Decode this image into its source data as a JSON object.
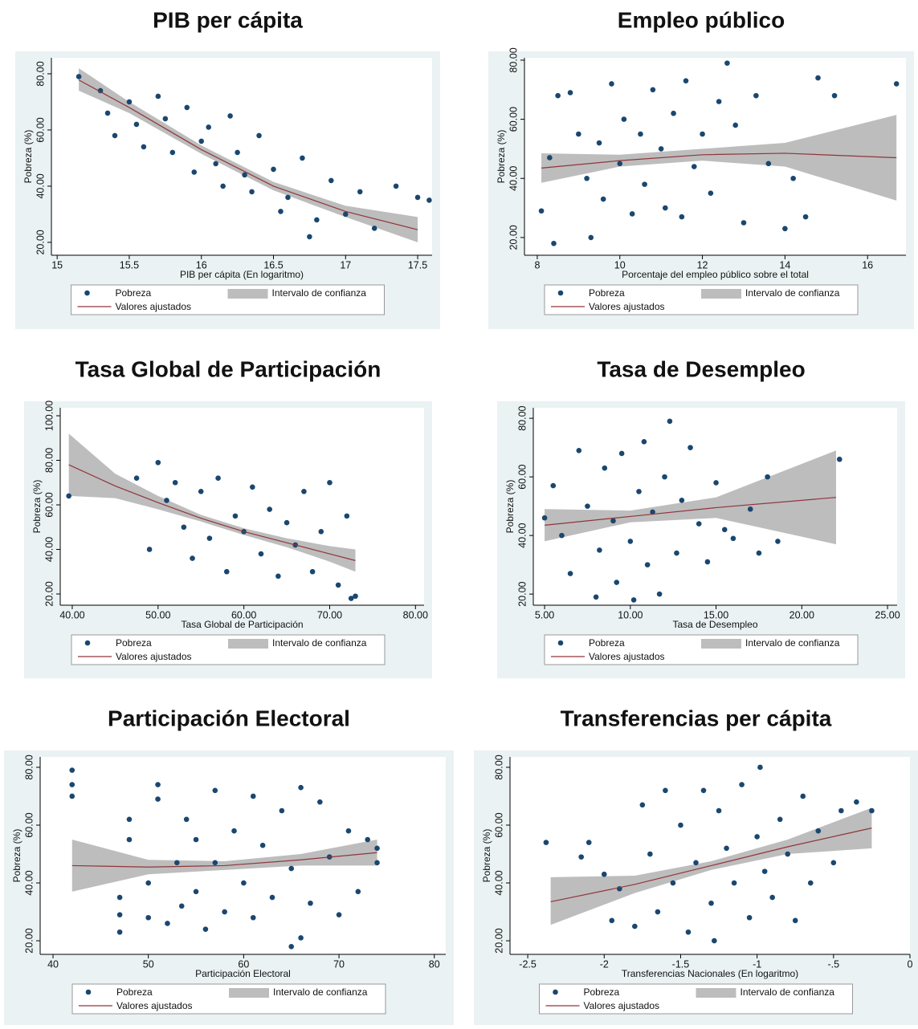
{
  "chart_data": [
    {
      "type": "scatter",
      "title": "PIB per cápita",
      "x_label": "PIB per cápita (En logaritmo)",
      "y_label": "Pobreza (%)",
      "xlim": [
        14.96,
        17.6
      ],
      "ylim": [
        15.4,
        85.7
      ],
      "xticks": [
        15,
        15.5,
        16,
        16.5,
        17,
        17.5
      ],
      "yticks": [
        {
          "value": 20,
          "label": "20.00"
        },
        {
          "value": 40,
          "label": "40.00"
        },
        {
          "value": 60,
          "label": "60.00"
        },
        {
          "value": 80,
          "label": "80.00"
        }
      ],
      "series": [
        {
          "name": "Pobreza",
          "color": "#1a476f",
          "x": [
            15.15,
            15.3,
            15.35,
            15.4,
            15.5,
            15.55,
            15.6,
            15.7,
            15.75,
            15.8,
            15.9,
            15.95,
            16.0,
            16.05,
            16.1,
            16.15,
            16.2,
            16.25,
            16.3,
            16.35,
            16.4,
            16.5,
            16.55,
            16.6,
            16.7,
            16.75,
            16.8,
            16.9,
            17.0,
            17.1,
            17.2,
            17.35,
            17.5,
            17.58
          ],
          "values": [
            79,
            74,
            66,
            58,
            70,
            62,
            54,
            72,
            64,
            52,
            68,
            45,
            56,
            61,
            48,
            40,
            65,
            52,
            44,
            38,
            58,
            46,
            31,
            36,
            50,
            22,
            28,
            42,
            30,
            38,
            25,
            40,
            36,
            35
          ]
        },
        {
          "name": "Intervalo de confianza",
          "color": "#bdbdbd",
          "x": [
            15.15,
            15.5,
            16,
            16.5,
            17,
            17.5
          ],
          "lower": [
            74,
            66,
            51.5,
            38.5,
            29,
            20
          ],
          "upper": [
            82,
            70,
            54.5,
            41.5,
            33,
            29
          ]
        },
        {
          "name": "Valores ajustados",
          "color": "#90353b",
          "x": [
            15.15,
            15.5,
            16,
            16.5,
            17,
            17.5
          ],
          "values": [
            77.8,
            68,
            53,
            40,
            31,
            24.5
          ]
        }
      ]
    },
    {
      "type": "scatter",
      "title": "Empleo público",
      "x_label": "Porcentaje del empleo público sobre el total",
      "y_label": "Pobreza (%)",
      "xlim": [
        7.69,
        16.93
      ],
      "ylim": [
        14.0,
        80.8
      ],
      "xticks": [
        8,
        10,
        12,
        14,
        16
      ],
      "yticks": [
        {
          "value": 20,
          "label": "20.00"
        },
        {
          "value": 40,
          "label": "40.00"
        },
        {
          "value": 60,
          "label": "60.00"
        },
        {
          "value": 80,
          "label": "80.00"
        }
      ],
      "series": [
        {
          "name": "Pobreza",
          "color": "#1a476f",
          "x": [
            8.1,
            8.3,
            8.4,
            8.5,
            8.8,
            9,
            9.2,
            9.3,
            9.5,
            9.6,
            9.8,
            10,
            10.1,
            10.3,
            10.5,
            10.6,
            10.8,
            11,
            11.1,
            11.3,
            11.5,
            11.6,
            11.8,
            12,
            12.2,
            12.4,
            12.6,
            12.8,
            13,
            13.3,
            13.6,
            14,
            14.2,
            14.5,
            14.8,
            15.2,
            16.7
          ],
          "values": [
            29,
            47,
            18,
            68,
            69,
            55,
            40,
            20,
            52,
            33,
            72,
            45,
            60,
            28,
            55,
            38,
            70,
            50,
            30,
            62,
            27,
            73,
            44,
            55,
            35,
            66,
            79,
            58,
            25,
            68,
            45,
            23,
            40,
            27,
            74,
            68,
            72
          ]
        },
        {
          "name": "Intervalo de confianza",
          "color": "#bdbdbd",
          "x": [
            8.1,
            10,
            12,
            14,
            16.7
          ],
          "lower": [
            38.5,
            44,
            46,
            44,
            32.5
          ],
          "upper": [
            48.5,
            48,
            50,
            52,
            61.5
          ]
        },
        {
          "name": "Valores ajustados",
          "color": "#90353b",
          "x": [
            8.1,
            10,
            12,
            14,
            16.7
          ],
          "values": [
            43.5,
            46,
            48,
            48.5,
            47
          ]
        }
      ]
    },
    {
      "type": "scatter",
      "title": "Tasa Global de Participación",
      "x_label": "Tasa Global de Participación",
      "y_label": "Pobreza (%)",
      "xlim": [
        38.6,
        81.0
      ],
      "ylim": [
        14.95,
        103.6
      ],
      "xticks": [
        {
          "value": 40,
          "label": "40.00"
        },
        {
          "value": 50,
          "label": "50.00"
        },
        {
          "value": 60,
          "label": "60.00"
        },
        {
          "value": 70,
          "label": "70.00"
        },
        {
          "value": 80,
          "label": "80.00"
        }
      ],
      "yticks": [
        {
          "value": 20,
          "label": "20.00"
        },
        {
          "value": 40,
          "label": "40.00"
        },
        {
          "value": 60,
          "label": "60.00"
        },
        {
          "value": 80,
          "label": "80.00"
        },
        {
          "value": 100,
          "label": "100.00"
        }
      ],
      "series": [
        {
          "name": "Pobreza",
          "color": "#1a476f",
          "x": [
            39.6,
            47.5,
            49,
            50,
            51,
            52,
            53,
            54,
            55,
            56,
            57,
            58,
            59,
            60,
            61,
            62,
            63,
            64,
            65,
            66,
            67,
            68,
            69,
            70,
            71,
            72,
            72.5,
            73
          ],
          "values": [
            64,
            72,
            40,
            79,
            62,
            70,
            50,
            36,
            66,
            45,
            72,
            30,
            55,
            48,
            68,
            38,
            58,
            28,
            52,
            42,
            66,
            30,
            48,
            70,
            24,
            55,
            18,
            19
          ]
        },
        {
          "name": "Intervalo de confianza",
          "color": "#bdbdbd",
          "x": [
            39.6,
            45,
            50,
            55,
            60,
            65,
            70,
            73
          ],
          "lower": [
            64,
            63,
            58,
            52.5,
            46.5,
            41,
            34.5,
            30
          ],
          "upper": [
            92,
            74,
            64,
            55.5,
            49.5,
            45,
            41.5,
            40
          ]
        },
        {
          "name": "Valores ajustados",
          "color": "#90353b",
          "x": [
            39.6,
            45,
            50,
            55,
            60,
            65,
            70,
            73
          ],
          "values": [
            78,
            68.5,
            61,
            54,
            48,
            43,
            38,
            35
          ]
        }
      ]
    },
    {
      "type": "scatter",
      "title": "Tasa de Desempleo",
      "x_label": "Tasa de Desempleo",
      "y_label": "Pobreza (%)",
      "xlim": [
        4.34,
        25.56
      ],
      "ylim": [
        16.2,
        83.6
      ],
      "xticks": [
        {
          "value": 5,
          "label": "5.00"
        },
        {
          "value": 10,
          "label": "10.00"
        },
        {
          "value": 15,
          "label": "15.00"
        },
        {
          "value": 20,
          "label": "20.00"
        },
        {
          "value": 25,
          "label": "25.00"
        }
      ],
      "yticks": [
        {
          "value": 20,
          "label": "20.00"
        },
        {
          "value": 40,
          "label": "40.00"
        },
        {
          "value": 60,
          "label": "60.00"
        },
        {
          "value": 80,
          "label": "80.00"
        }
      ],
      "series": [
        {
          "name": "Pobreza",
          "color": "#1a476f",
          "x": [
            5,
            5.5,
            6,
            6.5,
            7,
            7.5,
            8,
            8.2,
            8.5,
            9,
            9.2,
            9.5,
            10,
            10.2,
            10.5,
            10.8,
            11,
            11.3,
            11.7,
            12,
            12.3,
            12.7,
            13,
            13.5,
            14,
            14.5,
            15,
            15.5,
            16,
            17,
            17.5,
            18,
            18.6,
            22.2
          ],
          "values": [
            46,
            57,
            40,
            27,
            69,
            50,
            19,
            35,
            63,
            45,
            24,
            68,
            38,
            18,
            55,
            72,
            30,
            48,
            20,
            60,
            79,
            34,
            52,
            70,
            44,
            31,
            58,
            42,
            39,
            49,
            34,
            60,
            38,
            66
          ]
        },
        {
          "name": "Intervalo de confianza",
          "color": "#bdbdbd",
          "x": [
            5,
            10,
            15,
            22
          ],
          "lower": [
            38,
            44.5,
            46,
            37
          ],
          "upper": [
            49,
            48.5,
            53,
            69
          ]
        },
        {
          "name": "Valores ajustados",
          "color": "#90353b",
          "x": [
            5,
            10,
            15,
            22
          ],
          "values": [
            43.5,
            46.5,
            49.5,
            53
          ]
        }
      ]
    },
    {
      "type": "scatter",
      "title": "Participación Electoral",
      "x_label": "Participación Electoral",
      "y_label": "Pobreza (%)",
      "xlim": [
        38.65,
        81.2
      ],
      "ylim": [
        15.3,
        83.6
      ],
      "xticks": [
        40,
        50,
        60,
        70,
        80
      ],
      "yticks": [
        {
          "value": 20,
          "label": "20.00"
        },
        {
          "value": 40,
          "label": "40.00"
        },
        {
          "value": 60,
          "label": "60.00"
        },
        {
          "value": 80,
          "label": "80.00"
        }
      ],
      "series": [
        {
          "name": "Pobreza",
          "color": "#1a476f",
          "x": [
            42,
            42,
            42,
            47,
            47,
            47,
            48,
            48,
            50,
            50,
            51,
            51,
            52,
            53,
            53.5,
            54,
            55,
            55,
            56,
            57,
            57,
            58,
            59,
            60,
            61,
            61,
            62,
            63,
            64,
            65,
            65,
            66,
            66,
            67,
            68,
            69,
            70,
            71,
            72,
            73,
            74,
            74
          ],
          "values": [
            79,
            74,
            70,
            35,
            23,
            29,
            62,
            55,
            40,
            28,
            74,
            69,
            26,
            47,
            32,
            62,
            37,
            55,
            24,
            72,
            47,
            30,
            58,
            40,
            70,
            28,
            53,
            35,
            65,
            18,
            45,
            21,
            73,
            33,
            68,
            49,
            29,
            58,
            37,
            55,
            47,
            52
          ]
        },
        {
          "name": "Intervalo de confianza",
          "color": "#bdbdbd",
          "x": [
            42,
            50,
            58,
            66,
            74
          ],
          "lower": [
            37,
            43,
            44.5,
            46,
            46
          ],
          "upper": [
            55,
            48,
            47.5,
            50,
            55
          ]
        },
        {
          "name": "Valores ajustados",
          "color": "#90353b",
          "x": [
            42,
            50,
            58,
            66,
            74
          ],
          "values": [
            46,
            45.5,
            46,
            48,
            50.5
          ]
        }
      ]
    },
    {
      "type": "scatter",
      "title": "Transferencias per cápita",
      "x_label": "Transferencias Nacionales (En logaritmo)",
      "y_label": "Pobreza (%)",
      "xlim": [
        -2.616,
        0
      ],
      "ylim": [
        15.3,
        83.6
      ],
      "xticks": [
        -2.5,
        -2,
        -1.5,
        -1,
        {
          "value": -0.5,
          "label": "-.5"
        },
        0
      ],
      "yticks": [
        {
          "value": 20,
          "label": "20.00"
        },
        {
          "value": 40,
          "label": "40.00"
        },
        {
          "value": 60,
          "label": "60.00"
        },
        {
          "value": 80,
          "label": "80.00"
        }
      ],
      "series": [
        {
          "name": "Pobreza",
          "color": "#1a476f",
          "x": [
            -2.38,
            -2.15,
            -2.1,
            -2,
            -1.95,
            -1.9,
            -1.8,
            -1.75,
            -1.7,
            -1.65,
            -1.6,
            -1.55,
            -1.5,
            -1.45,
            -1.4,
            -1.35,
            -1.3,
            -1.28,
            -1.25,
            -1.2,
            -1.15,
            -1.1,
            -1.05,
            -1,
            -0.98,
            -0.95,
            -0.9,
            -0.85,
            -0.8,
            -0.75,
            -0.7,
            -0.65,
            -0.6,
            -0.5,
            -0.45,
            -0.35,
            -0.25
          ],
          "values": [
            54,
            49,
            54,
            43,
            27,
            38,
            25,
            67,
            50,
            30,
            72,
            40,
            60,
            23,
            47,
            72,
            33,
            20,
            65,
            52,
            40,
            74,
            28,
            56,
            80,
            44,
            35,
            62,
            50,
            27,
            70,
            40,
            58,
            47,
            65,
            68,
            65
          ]
        },
        {
          "name": "Intervalo de confianza",
          "color": "#bdbdbd",
          "x": [
            -2.35,
            -1.8,
            -1.3,
            -0.8,
            -0.25
          ],
          "lower": [
            25.5,
            36.5,
            44.5,
            50,
            52
          ],
          "upper": [
            42,
            42.5,
            47.5,
            55,
            66
          ]
        },
        {
          "name": "Valores ajustados",
          "color": "#90353b",
          "x": [
            -2.35,
            -1.8,
            -1.3,
            -0.8,
            -0.25
          ],
          "values": [
            33.5,
            39.5,
            46,
            52.5,
            59
          ]
        }
      ]
    }
  ]
}
